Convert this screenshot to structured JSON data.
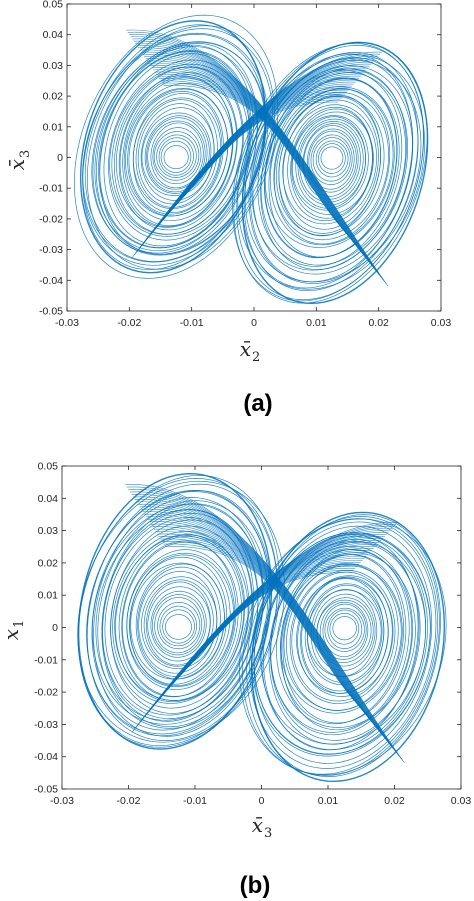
{
  "chart_data": [
    {
      "type": "line",
      "caption": "(a)",
      "xlabel": {
        "base": "x̄",
        "sub": "2"
      },
      "ylabel": {
        "base": "x̄",
        "sub": "3"
      },
      "xlim": [
        -0.03,
        0.03
      ],
      "ylim": [
        -0.05,
        0.05
      ],
      "xticks": [
        -0.03,
        -0.02,
        -0.01,
        0,
        0.01,
        0.02,
        0.03
      ],
      "yticks": [
        -0.05,
        -0.04,
        -0.03,
        -0.02,
        -0.01,
        0,
        0.01,
        0.02,
        0.03,
        0.04,
        0.05
      ],
      "xtick_labels": [
        "-0.03",
        "-0.02",
        "-0.01",
        "0",
        "0.01",
        "0.02",
        "0.03"
      ],
      "ytick_labels": [
        "-0.05",
        "-0.04",
        "-0.03",
        "-0.02",
        "-0.01",
        "0",
        "0.01",
        "0.02",
        "0.03",
        "0.04",
        "0.05"
      ],
      "grid": false,
      "line_color": "#0072BD",
      "attractor": {
        "left_focus": [
          -0.0125,
          0.0
        ],
        "right_focus": [
          0.0125,
          0.0
        ],
        "x_extent": [
          -0.027,
          0.027
        ],
        "y_extent": [
          -0.048,
          0.045
        ],
        "left_lobe_ymax": 0.045,
        "left_lobe_ymin": -0.038,
        "right_lobe_ymax": 0.038,
        "right_lobe_ymin": -0.048
      }
    },
    {
      "type": "line",
      "caption": "(b)",
      "xlabel": {
        "base": "x̄",
        "sub": "3"
      },
      "ylabel": {
        "base": "x",
        "sub": "1"
      },
      "xlim": [
        -0.03,
        0.03
      ],
      "ylim": [
        -0.05,
        0.05
      ],
      "xticks": [
        -0.03,
        -0.02,
        -0.01,
        0,
        0.01,
        0.02,
        0.03
      ],
      "yticks": [
        -0.05,
        -0.04,
        -0.03,
        -0.02,
        -0.01,
        0,
        0.01,
        0.02,
        0.03,
        0.04,
        0.05
      ],
      "xtick_labels": [
        "-0.03",
        "-0.02",
        "-0.01",
        "0",
        "0.01",
        "0.02",
        "0.03"
      ],
      "ytick_labels": [
        "-0.05",
        "-0.04",
        "-0.03",
        "-0.02",
        "-0.01",
        "0",
        "0.01",
        "0.02",
        "0.03",
        "0.04",
        "0.05"
      ],
      "grid": false,
      "line_color": "#0072BD",
      "attractor": {
        "left_focus": [
          -0.0125,
          0.0
        ],
        "right_focus": [
          0.0125,
          0.0
        ],
        "x_extent": [
          -0.027,
          0.027
        ],
        "y_extent": [
          -0.048,
          0.048
        ],
        "left_lobe_ymax": 0.048,
        "left_lobe_ymin": -0.038,
        "right_lobe_ymax": 0.036,
        "right_lobe_ymin": -0.048
      }
    }
  ]
}
